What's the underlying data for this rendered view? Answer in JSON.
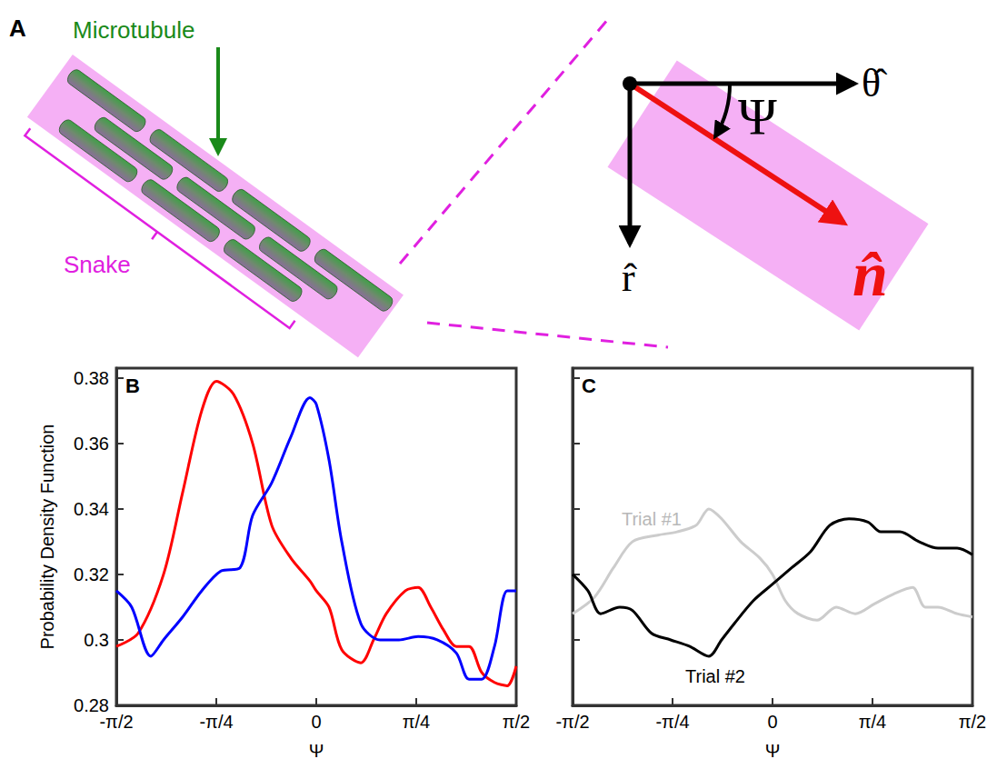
{
  "diagram": {
    "panel_label": "A",
    "microtubule_label": "Microtubule",
    "snake_label": "Snake",
    "angle_symbol": "Ψ",
    "theta_hat": "θ̂",
    "r_hat": "r̂",
    "n_hat": "n̂"
  },
  "chart_data": [
    {
      "type": "line",
      "panel_label": "B",
      "x_label": "Ψ",
      "y_label": "Probability Density Function",
      "xlim": [
        -1.5708,
        1.5708
      ],
      "xticks": [
        {
          "value": -1.5708,
          "label": "-π/2"
        },
        {
          "value": -0.7854,
          "label": "-π/4"
        },
        0,
        {
          "value": 0.7854,
          "label": "π/4"
        },
        {
          "value": 1.5708,
          "label": "π/2"
        }
      ],
      "ylim": [
        0.28,
        0.383
      ],
      "yticks": [
        0.28,
        0.3,
        0.32,
        0.34,
        0.36,
        0.38
      ],
      "grid": false,
      "series": [
        {
          "color": "#ff0000",
          "x": [
            -1.5708,
            -1.4,
            -1.2,
            -1.05,
            -0.9,
            -0.785,
            -0.65,
            -0.5,
            -0.35,
            -0.2,
            -0.05,
            0,
            0.1,
            0.2,
            0.35,
            0.45,
            0.55,
            0.7,
            0.8,
            0.9,
            1.0,
            1.1,
            1.2,
            1.3,
            1.4,
            1.5,
            1.5708
          ],
          "values": [
            0.298,
            0.302,
            0.32,
            0.345,
            0.37,
            0.379,
            0.375,
            0.36,
            0.335,
            0.325,
            0.318,
            0.315,
            0.31,
            0.297,
            0.293,
            0.3,
            0.308,
            0.315,
            0.316,
            0.31,
            0.303,
            0.298,
            0.298,
            0.29,
            0.287,
            0.286,
            0.292
          ]
        },
        {
          "color": "#0000ff",
          "x": [
            -1.5708,
            -1.45,
            -1.3,
            -1.2,
            -1.05,
            -0.9,
            -0.75,
            -0.6,
            -0.5,
            -0.35,
            -0.2,
            -0.05,
            0,
            0.1,
            0.2,
            0.35,
            0.5,
            0.65,
            0.8,
            0.95,
            1.1,
            1.2,
            1.3,
            1.4,
            1.5,
            1.5708
          ],
          "values": [
            0.315,
            0.31,
            0.295,
            0.3,
            0.307,
            0.315,
            0.321,
            0.322,
            0.338,
            0.348,
            0.362,
            0.374,
            0.372,
            0.355,
            0.33,
            0.305,
            0.3,
            0.3,
            0.301,
            0.3,
            0.296,
            0.288,
            0.288,
            0.298,
            0.315,
            0.315
          ]
        }
      ]
    },
    {
      "type": "line",
      "panel_label": "C",
      "x_label": "Ψ",
      "tick_labels": "x",
      "xlim": [
        -1.5708,
        1.5708
      ],
      "xticks": [
        {
          "value": -1.5708,
          "label": "-π/2"
        },
        {
          "value": -0.7854,
          "label": "-π/4"
        },
        0,
        {
          "value": 0.7854,
          "label": "π/4"
        },
        {
          "value": 1.5708,
          "label": "π/2"
        }
      ],
      "ylim": [
        0.28,
        0.383
      ],
      "yticks": [
        0.28,
        0.3,
        0.32,
        0.34,
        0.36,
        0.38
      ],
      "grid": false,
      "series": [
        {
          "color": "#cccccc",
          "x": [
            -1.5708,
            -1.4,
            -1.25,
            -1.1,
            -0.9,
            -0.75,
            -0.6,
            -0.5,
            -0.4,
            -0.25,
            -0.1,
            0,
            0.1,
            0.2,
            0.35,
            0.5,
            0.65,
            0.8,
            0.95,
            1.1,
            1.2,
            1.3,
            1.45,
            1.5708
          ],
          "values": [
            0.308,
            0.313,
            0.322,
            0.33,
            0.332,
            0.333,
            0.335,
            0.34,
            0.337,
            0.33,
            0.325,
            0.32,
            0.312,
            0.308,
            0.306,
            0.31,
            0.308,
            0.311,
            0.314,
            0.316,
            0.31,
            0.31,
            0.308,
            0.307
          ]
        },
        {
          "color": "#000000",
          "x": [
            -1.5708,
            -1.45,
            -1.35,
            -1.2,
            -1.1,
            -0.95,
            -0.8,
            -0.65,
            -0.5,
            -0.4,
            -0.3,
            -0.15,
            0,
            0.15,
            0.3,
            0.45,
            0.6,
            0.75,
            0.85,
            1.0,
            1.15,
            1.3,
            1.45,
            1.5708
          ],
          "values": [
            0.32,
            0.315,
            0.308,
            0.31,
            0.309,
            0.302,
            0.3,
            0.298,
            0.295,
            0.3,
            0.305,
            0.312,
            0.317,
            0.322,
            0.327,
            0.335,
            0.337,
            0.336,
            0.333,
            0.333,
            0.33,
            0.328,
            0.328,
            0.326
          ]
        }
      ],
      "annotations": [
        {
          "text": "Trial #1",
          "x": -0.95,
          "y": 0.337,
          "color": "#b8b8b8"
        },
        {
          "text": "Trial #2",
          "x": -0.45,
          "y": 0.289,
          "color": "#000000"
        }
      ]
    }
  ]
}
